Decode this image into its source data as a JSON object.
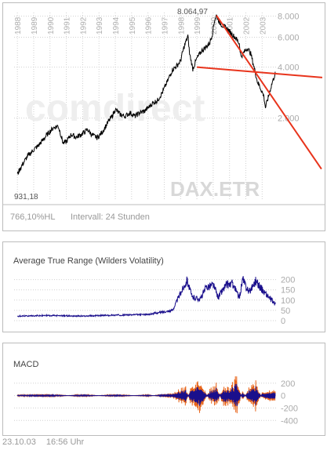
{
  "main": {
    "years": [
      "1988",
      "1989",
      "1990",
      "1991",
      "1992",
      "1993",
      "1994",
      "1995",
      "1996",
      "1997",
      "1998",
      "1999",
      "2000",
      "2001",
      "2002",
      "2003"
    ],
    "y_ticks": [
      "8.000",
      "6.000",
      "4.000",
      "2.000"
    ],
    "high_label": "8.064,97",
    "low_label": "931,18",
    "watermark": "comdirect",
    "symbol": "DAX.ETR",
    "stats_hl": "766,10%HL",
    "interval": "Intervall: 24 Stunden"
  },
  "atr": {
    "title": "Average True Range (Wilders Volatility)",
    "y_ticks": [
      "200",
      "150",
      "100",
      "50",
      "0"
    ]
  },
  "macd": {
    "title": "MACD",
    "y_ticks": [
      "200",
      "0",
      "-200",
      "-400"
    ]
  },
  "footer": {
    "date": "23.10.03",
    "time": "16:56 Uhr"
  },
  "colors": {
    "price": "#000000",
    "trend_lines": "#e8341c",
    "atr_line": "#1a0f8c",
    "macd_line": "#1a0f8c",
    "macd_signal": "#e8661c",
    "grid": "#d0d0d0",
    "year_labels": "#b0b0b0"
  },
  "chart_data": [
    {
      "type": "line",
      "title": "",
      "series": [
        {
          "name": "",
          "x": [
            1988.0,
            1988.3,
            1988.6,
            1989.0,
            1989.3,
            1989.6,
            1989.9,
            1990.2,
            1990.5,
            1990.8,
            1991.0,
            1991.3,
            1991.6,
            1992.0,
            1992.3,
            1992.6,
            1992.9,
            1993.2,
            1993.5,
            1993.8,
            1994.0,
            1994.3,
            1994.6,
            1994.9,
            1995.2,
            1995.5,
            1995.8,
            1996.0,
            1996.3,
            1996.6,
            1996.9,
            1997.2,
            1997.5,
            1997.8,
            1998.0,
            1998.2,
            1998.45,
            1998.55,
            1998.75,
            1999.0,
            1999.3,
            1999.6,
            1999.8,
            1999.95,
            2000.1,
            2000.2,
            2000.4,
            2000.6,
            2000.8,
            2001.0,
            2001.2,
            2001.4,
            2001.6,
            2001.7,
            2001.9,
            2002.1,
            2002.3,
            2002.5,
            2002.7,
            2002.9,
            2003.1,
            2003.2,
            2003.4,
            2003.6,
            2003.8
          ],
          "y": [
            931,
            1060,
            1180,
            1300,
            1380,
            1500,
            1630,
            1750,
            1800,
            1420,
            1450,
            1600,
            1540,
            1620,
            1710,
            1580,
            1530,
            1650,
            1850,
            2050,
            2250,
            2100,
            2050,
            2150,
            2050,
            2150,
            2200,
            2300,
            2450,
            2550,
            2850,
            3300,
            3850,
            4100,
            4350,
            5200,
            6100,
            4800,
            3900,
            4500,
            5000,
            5300,
            5600,
            6300,
            7700,
            8064,
            7300,
            7000,
            6800,
            6500,
            6200,
            5900,
            5500,
            4600,
            4900,
            5200,
            4800,
            4000,
            3300,
            3000,
            2700,
            2300,
            2700,
            3200,
            3650
          ]
        }
      ],
      "annotations": [
        "8.064,97",
        "931,18"
      ],
      "trend_lines": [
        {
          "from": [
            2000.2,
            8064
          ],
          "to": [
            2003.75,
            1000
          ]
        },
        {
          "from": [
            1999.0,
            4000
          ],
          "to": [
            2003.8,
            3700
          ]
        }
      ],
      "xlim": [
        1987.8,
        2003.85
      ],
      "ylim": [
        650,
        8400
      ],
      "y_scale": "log",
      "ylabel_side": "right",
      "grid": true
    },
    {
      "type": "line",
      "title": "Average True Range (Wilders Volatility)",
      "series": [
        {
          "name": "",
          "x": [
            1988.0,
            1990.0,
            1992.0,
            1994.0,
            1996.0,
            1997.5,
            1998.4,
            1998.7,
            1999.2,
            1999.6,
            2000.0,
            2000.3,
            2000.8,
            2001.2,
            2001.6,
            2001.8,
            2002.2,
            2002.6,
            2003.0,
            2003.4,
            2003.8
          ],
          "y": [
            22,
            25,
            22,
            27,
            30,
            50,
            200,
            115,
            105,
            165,
            175,
            115,
            175,
            180,
            110,
            200,
            140,
            195,
            150,
            115,
            80
          ]
        }
      ],
      "ylim": [
        0,
        210
      ],
      "grid": true
    },
    {
      "type": "line",
      "title": "MACD",
      "series": [
        {
          "name": "",
          "x": [
            1988.0,
            1990.0,
            1992.0,
            1994.0,
            1996.0,
            1997.5,
            1998.3,
            1998.6,
            1999.2,
            1999.8,
            2000.2,
            2000.6,
            2001.0,
            2001.4,
            2001.8,
            2002.2,
            2002.6,
            2003.0,
            2003.8
          ],
          "y": [
            10,
            25,
            -20,
            20,
            -15,
            50,
            180,
            -150,
            -300,
            120,
            240,
            -200,
            -150,
            -380,
            100,
            -160,
            -280,
            60,
            120
          ]
        }
      ],
      "ylim": [
        -460,
        260
      ],
      "grid": true
    }
  ]
}
